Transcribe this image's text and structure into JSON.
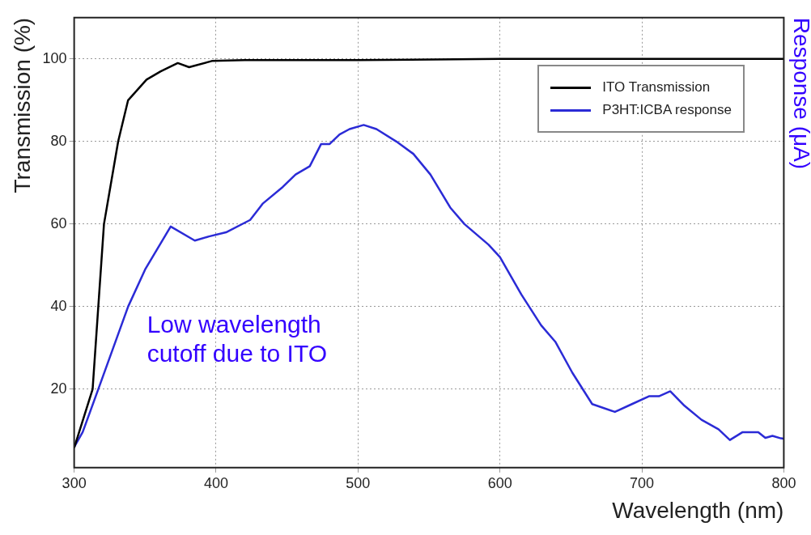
{
  "chart_data": {
    "type": "line",
    "xlabel": "Wavelength (nm)",
    "ylabel": "Transmission (%)",
    "y2label": "Response (μA)",
    "xlim": [
      300,
      800
    ],
    "xticks": [
      300,
      400,
      500,
      600,
      700,
      800
    ],
    "ylim": [
      1,
      110
    ],
    "yticks": [
      20,
      40,
      60,
      80,
      100
    ],
    "grid": true,
    "legend": "top right",
    "marker": "none",
    "line_style": "solid",
    "annotations": [
      "Low wavelength cutoff due to ITO"
    ],
    "series": [
      {
        "name": "ITO Transmission",
        "color": "#000000",
        "x": [
          300,
          313,
          321,
          331,
          338,
          351,
          361,
          373,
          381,
          397,
          420,
          500,
          600,
          700,
          800
        ],
        "values": [
          5.8,
          20,
          60,
          80,
          90,
          95,
          97,
          99,
          98,
          99.5,
          99.7,
          99.7,
          100,
          100,
          100
        ]
      },
      {
        "name": "P3HT:ICBA response",
        "color": "#2b2bd6",
        "x": [
          300,
          306,
          317,
          338,
          350,
          368,
          385,
          395,
          407,
          424,
          433,
          447,
          456,
          466,
          474,
          480,
          487,
          494,
          504,
          513,
          527,
          539,
          551,
          565,
          575,
          592,
          600,
          615,
          629,
          639,
          651,
          665,
          681,
          693,
          705,
          712,
          720,
          730,
          742,
          754,
          762,
          771,
          782,
          787,
          792,
          798,
          800
        ],
        "values": [
          6,
          9.6,
          20,
          40,
          49,
          59.4,
          56,
          57,
          58,
          61,
          65,
          69,
          72,
          74,
          79.4,
          79.4,
          81.7,
          83,
          84,
          83,
          80,
          77,
          72,
          64,
          60,
          55,
          52,
          43,
          35.5,
          31.5,
          24,
          16.4,
          14.5,
          16.4,
          18.3,
          18.3,
          19.5,
          16,
          12.6,
          10.3,
          7.7,
          9.6,
          9.6,
          8.2,
          8.7,
          8.1,
          8
        ]
      }
    ]
  }
}
